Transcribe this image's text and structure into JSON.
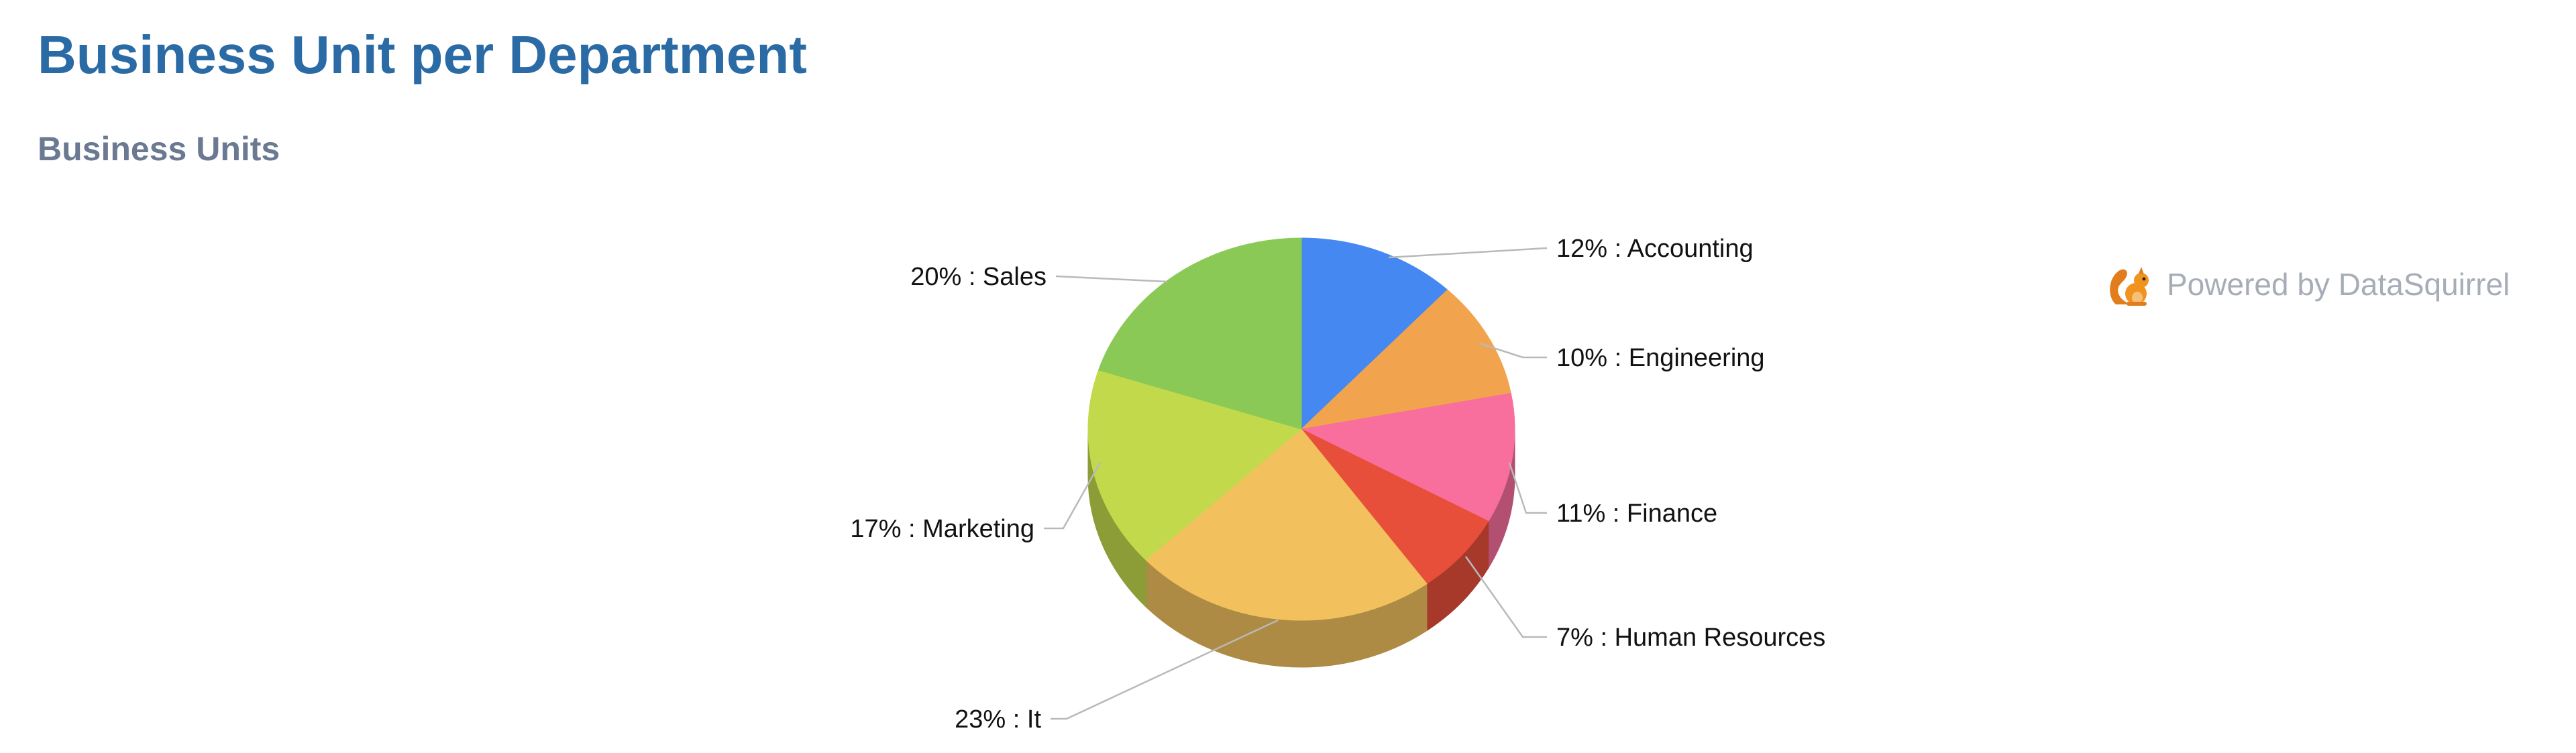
{
  "page": {
    "title": "Business Unit per Department"
  },
  "section": {
    "title": "Business Units"
  },
  "branding": {
    "text": "Powered by DataSquirrel",
    "icon": "squirrel-icon"
  },
  "chart_data": {
    "type": "pie",
    "style": "3d",
    "title": "",
    "label_format": "{pct}% : {name}",
    "slices": [
      {
        "name": "Accounting",
        "pct": 12,
        "color": "#4688f1"
      },
      {
        "name": "Engineering",
        "pct": 10,
        "color": "#f1a44d"
      },
      {
        "name": "Finance",
        "pct": 11,
        "color": "#f86f9d"
      },
      {
        "name": "Human Resources",
        "pct": 7,
        "color": "#e84f3a"
      },
      {
        "name": "It",
        "pct": 23,
        "color": "#f2c15e"
      },
      {
        "name": "Marketing",
        "pct": 17,
        "color": "#c3d94c"
      },
      {
        "name": "Sales",
        "pct": 20,
        "color": "#8bc957"
      }
    ]
  }
}
